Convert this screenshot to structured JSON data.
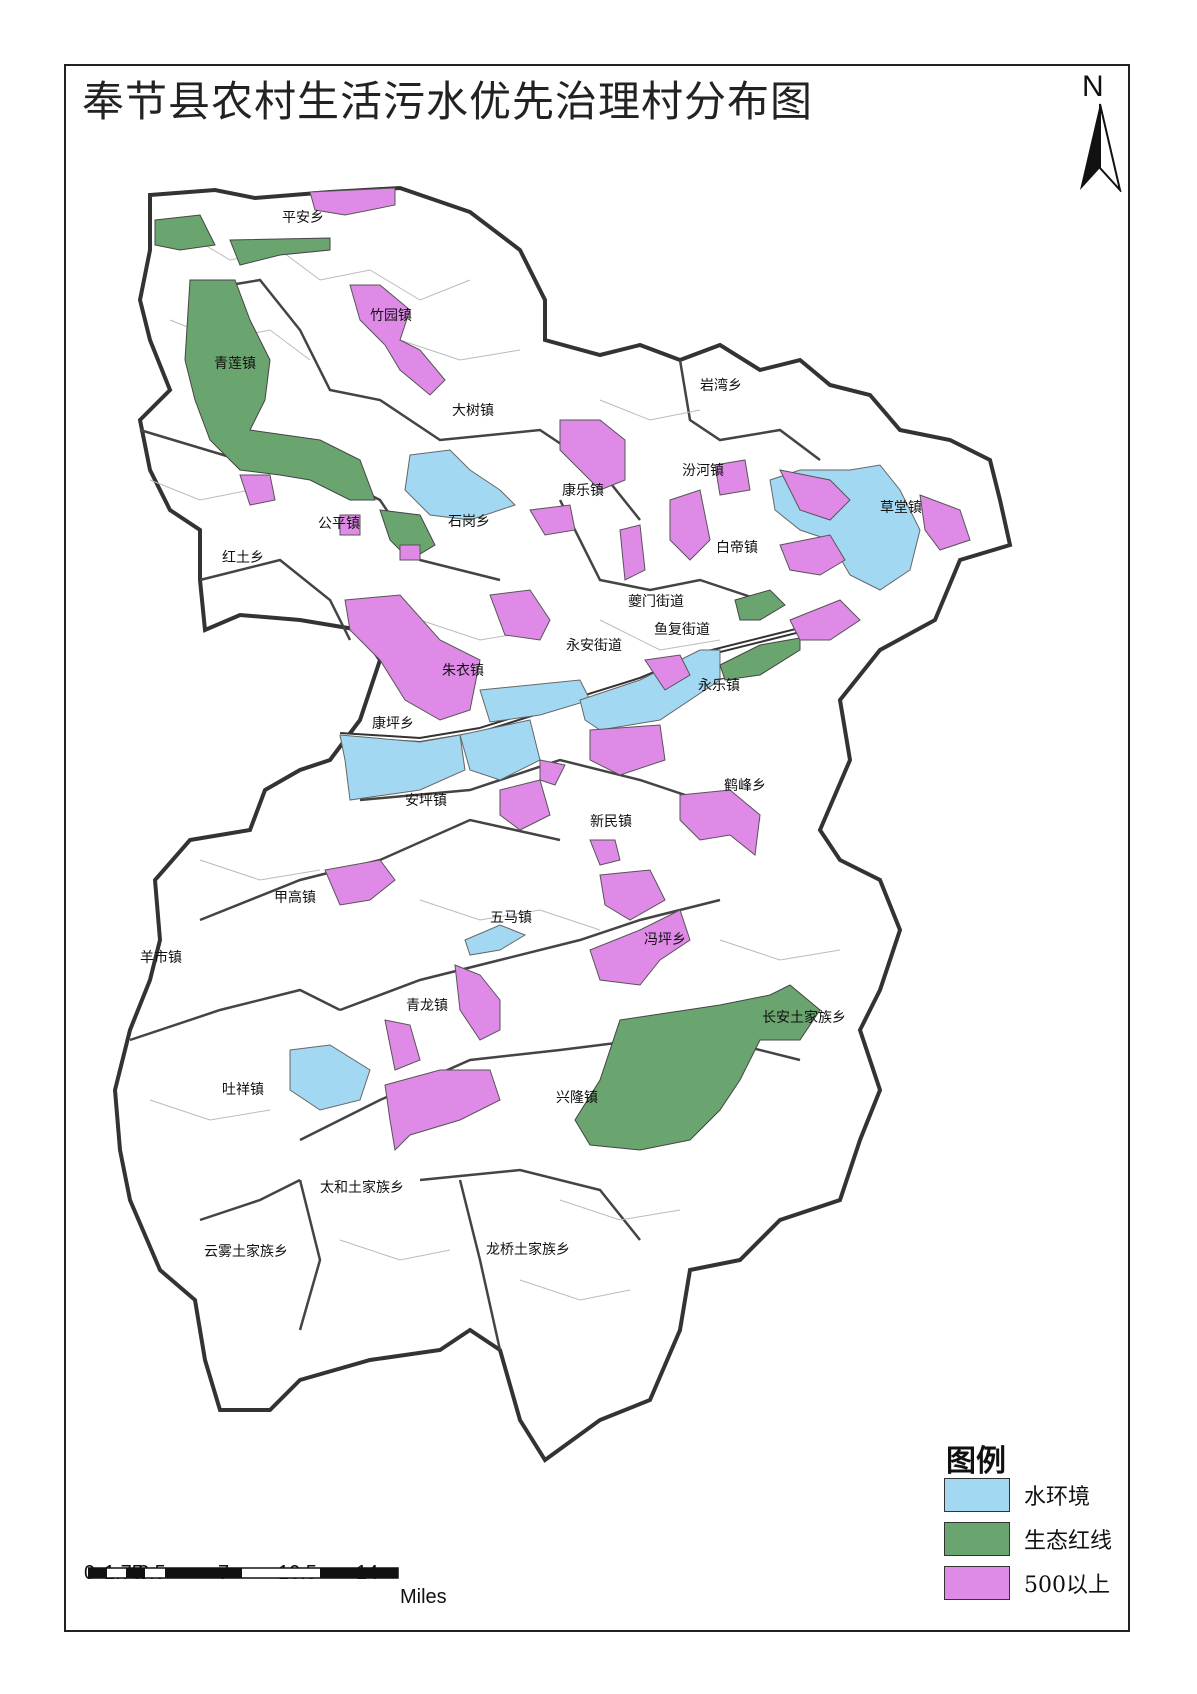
{
  "title": "奉节县农村生活污水优先治理村分布图",
  "north_label": "N",
  "legend": {
    "title": "图例",
    "items": [
      {
        "label": "水环境",
        "color": "#a3d8f2"
      },
      {
        "label": "生态红线",
        "color": "#6aa56f"
      },
      {
        "label": "500以上",
        "color": "#e08ae8"
      }
    ]
  },
  "scale": {
    "ticks": [
      "0",
      "1.75",
      "3.5",
      "7",
      "10.5",
      "14"
    ],
    "unit": "Miles"
  },
  "towns": [
    "平安乡",
    "竹园镇",
    "青莲镇",
    "大树镇",
    "岩湾乡",
    "康乐镇",
    "汾河镇",
    "草堂镇",
    "公平镇",
    "石岗乡",
    "白帝镇",
    "红土乡",
    "夔门街道",
    "鱼复街道",
    "永安街道",
    "朱衣镇",
    "永乐镇",
    "康坪乡",
    "安坪镇",
    "鹤峰乡",
    "新民镇",
    "甲高镇",
    "五马镇",
    "冯坪乡",
    "羊市镇",
    "青龙镇",
    "长安土家族乡",
    "吐祥镇",
    "兴隆镇",
    "太和土家族乡",
    "云雾土家族乡",
    "龙桥土家族乡"
  ]
}
